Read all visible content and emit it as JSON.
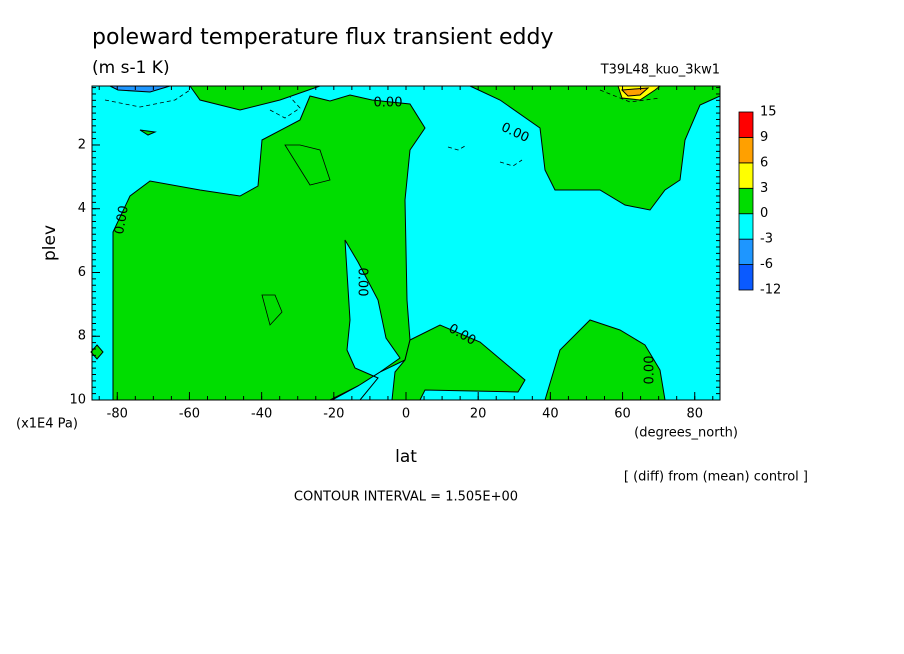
{
  "chart_data": {
    "type": "contour",
    "title": "poleward temperature flux transient eddy",
    "units": "(m s-1 K)",
    "experiment": "T39L48_kuo_3kw1",
    "x_label": "lat",
    "x_units": "(degrees_north)",
    "y_label": "plev",
    "y_units": "(x1E4 Pa)",
    "xlim": [
      -87,
      87
    ],
    "ylim": [
      10,
      0.15
    ],
    "xticks": [
      -80,
      -60,
      -40,
      -20,
      0,
      20,
      40,
      60,
      80
    ],
    "yticks": [
      2,
      4,
      6,
      8,
      10
    ],
    "levels": [
      -12,
      -6,
      -3,
      0,
      3,
      6,
      9,
      15
    ],
    "colors": [
      "#0a5aff",
      "#1e96ff",
      "#00ffff",
      "#00dd00",
      "#ffff00",
      "#ffa000",
      "#ff0000"
    ],
    "contour_labels": [
      "0.00",
      "0.00",
      "0.00",
      "0.00",
      "0.00",
      "0.00"
    ],
    "note": "[ (diff) from (mean) control ]",
    "contour_interval": "CONTOUR INTERVAL = 1.505E+00"
  }
}
